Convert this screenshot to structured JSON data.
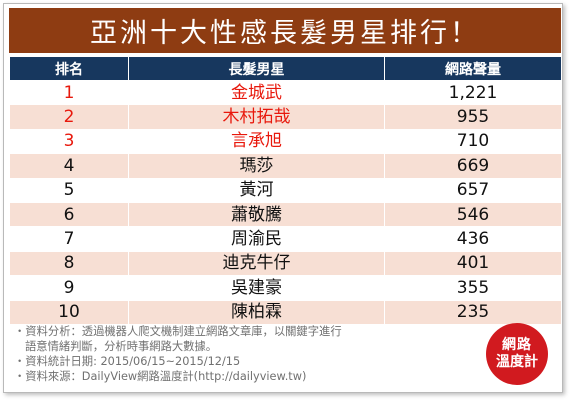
{
  "title": "亞洲十大性感長髮男星排行！",
  "colors": {
    "title_bg": "#8e3c12",
    "header_bg": "#17375e",
    "row_alt": "#f7dfd4",
    "top3_text": "#e8180c",
    "logo_bg": "#d11a1f"
  },
  "table": {
    "headers": [
      "排名",
      "長髮男星",
      "網路聲量"
    ],
    "rows": [
      {
        "rank": "1",
        "name": "金城武",
        "volume": "1,221"
      },
      {
        "rank": "2",
        "name": "木村拓哉",
        "volume": "955"
      },
      {
        "rank": "3",
        "name": "言承旭",
        "volume": "710"
      },
      {
        "rank": "4",
        "name": "瑪莎",
        "volume": "669"
      },
      {
        "rank": "5",
        "name": "黃河",
        "volume": "657"
      },
      {
        "rank": "6",
        "name": "蕭敬騰",
        "volume": "546"
      },
      {
        "rank": "7",
        "name": "周渝民",
        "volume": "436"
      },
      {
        "rank": "8",
        "name": "迪克牛仔",
        "volume": "401"
      },
      {
        "rank": "9",
        "name": "吳建豪",
        "volume": "355"
      },
      {
        "rank": "10",
        "name": "陳柏霖",
        "volume": "235"
      }
    ]
  },
  "chart_data": {
    "type": "table",
    "title": "亞洲十大性感長髮男星排行！",
    "columns": [
      "排名",
      "長髮男星",
      "網路聲量"
    ],
    "categories": [
      "金城武",
      "木村拓哉",
      "言承旭",
      "瑪莎",
      "黃河",
      "蕭敬騰",
      "周渝民",
      "迪克牛仔",
      "吳建豪",
      "陳柏霖"
    ],
    "values": [
      1221,
      955,
      710,
      669,
      657,
      546,
      436,
      401,
      355,
      235
    ]
  },
  "notes": {
    "line1": "・資料分析：透過機器人爬文機制建立網路文章庫，以關鍵字進行",
    "line2": "語意情緒判斷，分析時事網路大數據。",
    "line3": "・資料統計日期: 2015/06/15~2015/12/15",
    "line4": "・資料來源：DailyView網路溫度計(http://dailyview.tw)"
  },
  "logo": {
    "line1": "網路",
    "line2": "溫度計"
  }
}
